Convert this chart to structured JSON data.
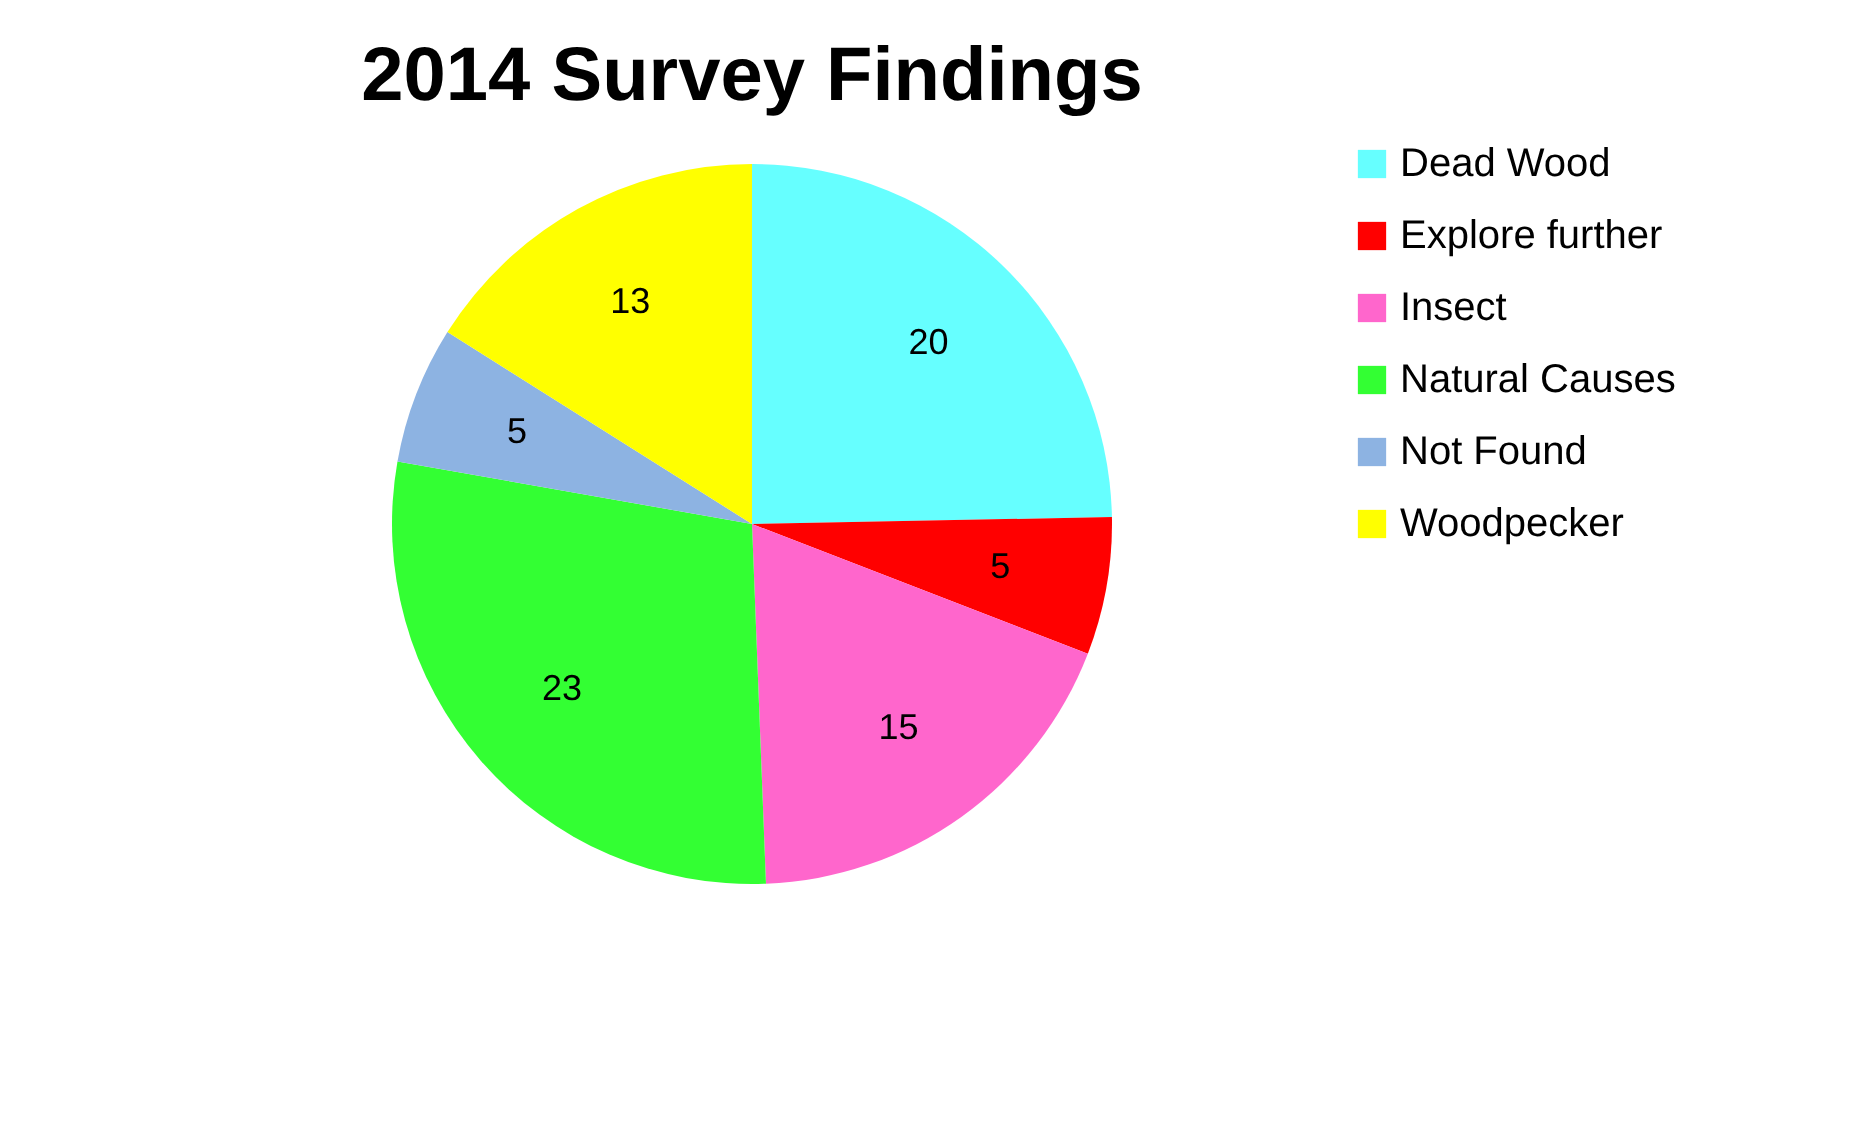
{
  "chart_data": {
    "type": "pie",
    "title": "2014 Survey Findings",
    "categories": [
      "Dead Wood",
      "Explore further",
      "Insect",
      "Natural Causes",
      "Not Found",
      "Woodpecker"
    ],
    "values": [
      20,
      5,
      15,
      23,
      5,
      13
    ],
    "colors": [
      "#66ffff",
      "#ff0000",
      "#ff66cc",
      "#33ff33",
      "#8db3e2",
      "#ffff00"
    ],
    "data_labels": true,
    "legend": "right"
  }
}
